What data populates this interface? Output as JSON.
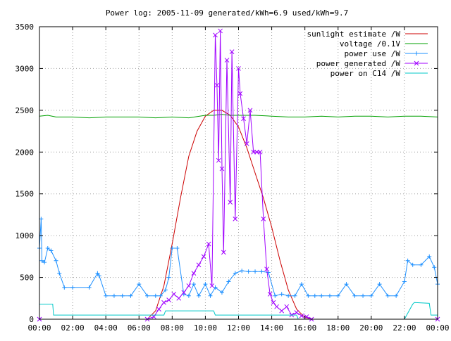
{
  "chart_data": {
    "type": "line",
    "title": "Power log: 2005-11-09 generated/kWh=6.9 used/kWh=9.7",
    "xlabel": "",
    "ylabel": "",
    "xlim": [
      0,
      24
    ],
    "ylim": [
      0,
      3500
    ],
    "grid": true,
    "legend_position": "top-right",
    "x_ticks": [
      "00:00",
      "02:00",
      "04:00",
      "06:00",
      "08:00",
      "10:00",
      "12:00",
      "14:00",
      "16:00",
      "18:00",
      "20:00",
      "22:00",
      "00:00"
    ],
    "y_ticks": [
      0,
      500,
      1000,
      1500,
      2000,
      2500,
      3000,
      3500
    ],
    "series": [
      {
        "name": "sunlight estimate /W",
        "color": "#cc0000",
        "marker": "none",
        "x": [
          0,
          6.5,
          7.0,
          7.5,
          8.0,
          8.5,
          9.0,
          9.5,
          10.0,
          10.5,
          11.0,
          11.5,
          12.0,
          12.5,
          13.0,
          13.5,
          14.0,
          14.5,
          15.0,
          15.5,
          16.0,
          16.5,
          24
        ],
        "y": [
          0,
          0,
          100,
          400,
          900,
          1450,
          1950,
          2250,
          2430,
          2500,
          2500,
          2440,
          2300,
          2050,
          1750,
          1450,
          1100,
          700,
          350,
          120,
          20,
          0,
          0
        ]
      },
      {
        "name": "voltage /0.1V",
        "color": "#00a000",
        "marker": "none",
        "x": [
          0,
          0.5,
          1.0,
          2.0,
          3.0,
          4.0,
          5.0,
          6.0,
          7.0,
          8.0,
          9.0,
          10.0,
          10.5,
          11.0,
          11.5,
          12.0,
          12.5,
          13.0,
          14.0,
          15.0,
          16.0,
          17.0,
          18.0,
          19.0,
          20.0,
          21.0,
          22.0,
          23.0,
          24.0
        ],
        "y": [
          2430,
          2440,
          2420,
          2420,
          2410,
          2420,
          2420,
          2420,
          2410,
          2420,
          2410,
          2440,
          2440,
          2450,
          2440,
          2440,
          2440,
          2440,
          2430,
          2420,
          2420,
          2430,
          2420,
          2430,
          2430,
          2420,
          2430,
          2430,
          2420
        ]
      },
      {
        "name": "power use /W",
        "color": "#1e90ff",
        "marker": "plus",
        "x": [
          0,
          0.1,
          0.15,
          0.3,
          0.5,
          0.7,
          1.0,
          1.2,
          1.5,
          2.0,
          3.0,
          3.5,
          3.6,
          4.0,
          4.5,
          5.0,
          5.5,
          6.0,
          6.5,
          7.0,
          7.3,
          7.6,
          7.8,
          8.0,
          8.3,
          8.7,
          9.0,
          9.3,
          9.6,
          10.0,
          10.3,
          10.6,
          11.0,
          11.4,
          11.8,
          12.2,
          12.6,
          13.0,
          13.4,
          13.8,
          14.2,
          14.6,
          15.0,
          15.4,
          15.8,
          16.2,
          16.6,
          17.0,
          17.5,
          18.0,
          18.5,
          19.0,
          19.5,
          20.0,
          20.5,
          21.0,
          21.5,
          22.0,
          22.2,
          22.5,
          23.0,
          23.5,
          23.8,
          24.0
        ],
        "y": [
          850,
          1200,
          700,
          680,
          850,
          820,
          700,
          550,
          380,
          380,
          380,
          550,
          520,
          280,
          280,
          280,
          280,
          420,
          280,
          280,
          280,
          350,
          500,
          850,
          850,
          300,
          280,
          420,
          280,
          420,
          280,
          380,
          320,
          450,
          550,
          580,
          570,
          570,
          570,
          560,
          280,
          300,
          280,
          280,
          420,
          280,
          280,
          280,
          280,
          280,
          420,
          280,
          280,
          280,
          420,
          280,
          280,
          450,
          700,
          650,
          650,
          750,
          620,
          420
        ]
      },
      {
        "name": "power generated /W",
        "color": "#a000ff",
        "marker": "cross",
        "x": [
          0,
          6.5,
          6.9,
          7.2,
          7.5,
          7.8,
          8.1,
          8.4,
          8.7,
          9.0,
          9.3,
          9.6,
          9.9,
          10.2,
          10.4,
          10.6,
          10.7,
          10.8,
          10.9,
          11.0,
          11.1,
          11.3,
          11.5,
          11.6,
          11.8,
          12.0,
          12.1,
          12.3,
          12.5,
          12.7,
          12.9,
          13.1,
          13.3,
          13.5,
          13.7,
          13.9,
          14.1,
          14.3,
          14.6,
          14.9,
          15.2,
          15.5,
          15.8,
          16.1,
          16.4,
          24
        ],
        "y": [
          0,
          0,
          30,
          120,
          200,
          230,
          300,
          250,
          320,
          400,
          550,
          650,
          750,
          900,
          400,
          3400,
          2800,
          1900,
          3450,
          1800,
          800,
          3100,
          1400,
          3200,
          1200,
          3000,
          2700,
          2400,
          2100,
          2500,
          2000,
          2000,
          2000,
          1200,
          600,
          300,
          200,
          150,
          100,
          150,
          50,
          80,
          40,
          30,
          0,
          0
        ]
      },
      {
        "name": "power on C14 /W",
        "color": "#00c8c8",
        "marker": "none",
        "x": [
          0,
          0.8,
          0.85,
          7.5,
          7.6,
          10.5,
          10.6,
          15.5,
          15.6,
          22.0,
          22.5,
          22.6,
          23.5,
          23.6,
          24
        ],
        "y": [
          180,
          180,
          50,
          50,
          100,
          100,
          50,
          50,
          0,
          0,
          180,
          200,
          190,
          50,
          50
        ]
      }
    ]
  }
}
